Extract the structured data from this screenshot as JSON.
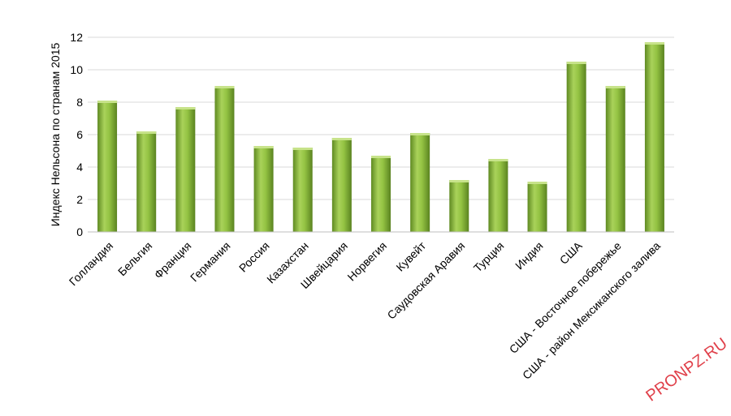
{
  "chart_data": {
    "type": "bar",
    "categories": [
      "Голландия",
      "Бельгия",
      "Франция",
      "Германия",
      "Россия",
      "Казахстан",
      "Швейцария",
      "Норвегия",
      "Кувейт",
      "Саудовская Аравия",
      "Турция",
      "Индия",
      "США",
      "США - Восточное побережье",
      "США - район Мексиканского залива"
    ],
    "values": [
      8.1,
      6.2,
      7.7,
      9.0,
      5.3,
      5.2,
      5.8,
      4.7,
      6.1,
      3.2,
      4.5,
      3.1,
      10.5,
      9.0,
      11.7
    ],
    "ylabel": "Индекс Нельсона по странам 2015",
    "xlabel": "",
    "ylim": [
      0,
      12
    ],
    "yticks": [
      0,
      2,
      4,
      6,
      8,
      10,
      12
    ],
    "grid": true,
    "bar_color": "#8dbb3c"
  },
  "watermark": "PRONPZ.RU"
}
